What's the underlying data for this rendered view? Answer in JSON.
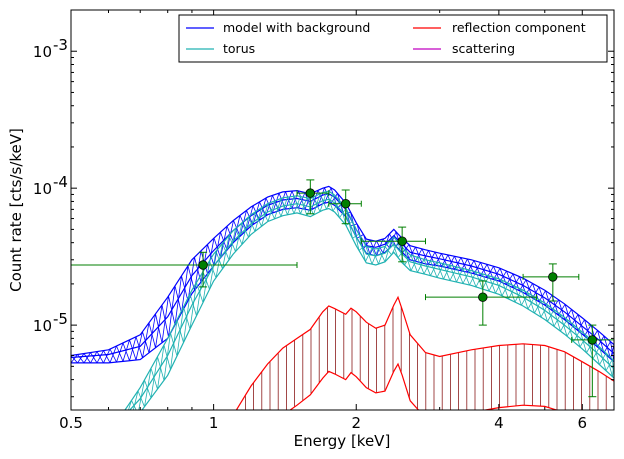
{
  "chart_data": {
    "type": "line",
    "xlabel": "Energy [keV]",
    "ylabel": "Count rate [cts/s/keV]",
    "xscale": "log",
    "yscale": "log",
    "xlim": [
      0.5,
      7.0
    ],
    "ylim": [
      2.4e-06,
      0.002
    ],
    "x_ticks": [
      {
        "value": 0.5,
        "label": "0.5"
      },
      {
        "value": 1,
        "label": "1"
      },
      {
        "value": 2,
        "label": "2"
      },
      {
        "value": 4,
        "label": "4"
      },
      {
        "value": 6,
        "label": "6"
      }
    ],
    "y_ticks": [
      {
        "value": 1e-05,
        "base": "10",
        "exp": "-5"
      },
      {
        "value": 0.0001,
        "base": "10",
        "exp": "-4"
      },
      {
        "value": 0.001,
        "base": "10",
        "exp": "-3"
      }
    ],
    "legend": {
      "placement": "top-right",
      "entries": [
        {
          "label": "model with background",
          "color": "#0000ff"
        },
        {
          "label": "reflection component",
          "color": "#ff0000"
        },
        {
          "label": "torus",
          "color": "#20b2b2"
        },
        {
          "label": "scattering",
          "color": "#c000c0"
        }
      ]
    },
    "series": [
      {
        "key": "model",
        "color": "#0000ff",
        "style": "band-hatched",
        "x": [
          0.5,
          0.6,
          0.7,
          0.8,
          0.9,
          1.0,
          1.1,
          1.2,
          1.3,
          1.4,
          1.5,
          1.6,
          1.7,
          1.75,
          1.8,
          1.9,
          2.0,
          2.1,
          2.2,
          2.3,
          2.4,
          2.5,
          2.6,
          2.8,
          3.0,
          3.5,
          4.0,
          4.5,
          5.0,
          5.5,
          6.0,
          6.5,
          7.0
        ],
        "mid": [
          5.8e-06,
          6.1e-06,
          7e-06,
          1.15e-05,
          2.3e-05,
          3.5e-05,
          4.9e-05,
          6.3e-05,
          7.5e-05,
          8.2e-05,
          8.4e-05,
          8e-05,
          8.9e-05,
          9.1e-05,
          8.6e-05,
          7e-05,
          5e-05,
          3.8e-05,
          3.7e-05,
          3.9e-05,
          4.5e-05,
          3.9e-05,
          3.4e-05,
          3.2e-05,
          3.05e-05,
          2.7e-05,
          2.35e-05,
          1.95e-05,
          1.58e-05,
          1.25e-05,
          9.8e-06,
          7.8e-06,
          6.2e-06
        ],
        "upper": [
          6e-06,
          6.6e-06,
          8.5e-06,
          1.6e-05,
          3e-05,
          4.3e-05,
          5.8e-05,
          7.3e-05,
          8.6e-05,
          9.4e-05,
          9.6e-05,
          9.1e-05,
          0.0001,
          0.000103,
          9.7e-05,
          7.8e-05,
          5.6e-05,
          4.25e-05,
          4.1e-05,
          4.3e-05,
          5e-05,
          4.3e-05,
          3.8e-05,
          3.55e-05,
          3.35e-05,
          3e-05,
          2.62e-05,
          2.2e-05,
          1.8e-05,
          1.43e-05,
          1.13e-05,
          9e-06,
          7.2e-06
        ],
        "lower": [
          5.3e-06,
          5.3e-06,
          5.6e-06,
          8e-06,
          1.7e-05,
          2.7e-05,
          4e-05,
          5.3e-05,
          6.4e-05,
          7e-05,
          7.2e-05,
          6.9e-05,
          7.7e-05,
          7.9e-05,
          7.5e-05,
          6.2e-05,
          4.4e-05,
          3.35e-05,
          3.2e-05,
          3.4e-05,
          3.9e-05,
          3.4e-05,
          3e-05,
          2.8e-05,
          2.7e-05,
          2.4e-05,
          2.1e-05,
          1.73e-05,
          1.4e-05,
          1.1e-05,
          8.6e-06,
          6.8e-06,
          5.4e-06
        ]
      },
      {
        "key": "torus",
        "color": "#20b2b2",
        "style": "band-hatched",
        "x": [
          0.65,
          0.7,
          0.8,
          0.9,
          1.0,
          1.1,
          1.2,
          1.3,
          1.4,
          1.5,
          1.6,
          1.7,
          1.75,
          1.8,
          1.9,
          2.0,
          2.1,
          2.2,
          2.3,
          2.4,
          2.5,
          2.6,
          2.8,
          3.0,
          3.5,
          4.0,
          4.5,
          5.0,
          5.5,
          6.0,
          6.5,
          7.0
        ],
        "mid": [
          2.2e-06,
          2.9e-06,
          6e-06,
          1.4e-05,
          2.7e-05,
          4.1e-05,
          5.5e-05,
          6.7e-05,
          7.4e-05,
          7.7e-05,
          7.3e-05,
          8.1e-05,
          8.3e-05,
          7.8e-05,
          6.3e-05,
          4.4e-05,
          3.3e-05,
          3.2e-05,
          3.35e-05,
          3.9e-05,
          3.3e-05,
          2.9e-05,
          2.7e-05,
          2.55e-05,
          2.25e-05,
          1.95e-05,
          1.6e-05,
          1.28e-05,
          1e-05,
          7.8e-06,
          6.1e-06,
          4.8e-06
        ],
        "upper": [
          2.4e-06,
          3.5e-06,
          8e-06,
          1.8e-05,
          3.3e-05,
          4.9e-05,
          6.4e-05,
          7.7e-05,
          8.5e-05,
          8.8e-05,
          8.4e-05,
          9.3e-05,
          9.5e-05,
          8.9e-05,
          7.2e-05,
          5e-05,
          3.75e-05,
          3.6e-05,
          3.75e-05,
          4.4e-05,
          3.7e-05,
          3.25e-05,
          3e-05,
          2.85e-05,
          2.5e-05,
          2.18e-05,
          1.8e-05,
          1.45e-05,
          1.14e-05,
          8.9e-06,
          7e-06,
          5.5e-06
        ],
        "lower": [
          2e-06,
          2.3e-06,
          4.3e-06,
          1e-05,
          2.1e-05,
          3.3e-05,
          4.6e-05,
          5.7e-05,
          6.3e-05,
          6.6e-05,
          6.2e-05,
          6.9e-05,
          7.1e-05,
          6.7e-05,
          5.4e-05,
          3.8e-05,
          2.85e-05,
          2.75e-05,
          2.9e-05,
          3.4e-05,
          2.85e-05,
          2.5e-05,
          2.35e-05,
          2.2e-05,
          1.95e-05,
          1.68e-05,
          1.38e-05,
          1.1e-05,
          8.6e-06,
          6.7e-06,
          5.2e-06,
          4.1e-06
        ]
      },
      {
        "key": "reflection",
        "color": "#ff0000",
        "style": "band-vertical",
        "x": [
          1.1,
          1.2,
          1.3,
          1.4,
          1.5,
          1.6,
          1.7,
          1.75,
          1.8,
          1.9,
          1.95,
          2.0,
          2.1,
          2.2,
          2.3,
          2.4,
          2.45,
          2.5,
          2.6,
          2.8,
          3.0,
          3.5,
          4.0,
          4.5,
          5.0,
          5.5,
          6.0,
          6.5,
          7.0
        ],
        "upper": [
          2.2e-06,
          3.6e-06,
          5.2e-06,
          6.8e-06,
          8e-06,
          9.3e-06,
          1.25e-05,
          1.38e-05,
          1.32e-05,
          1.2e-05,
          1.33e-05,
          1.25e-05,
          1.05e-05,
          9.5e-06,
          1e-05,
          1.4e-05,
          1.6e-05,
          1.3e-05,
          8.5e-06,
          6.3e-06,
          5.9e-06,
          6.6e-06,
          7.1e-06,
          7.3e-06,
          7.1e-06,
          6.4e-06,
          5.4e-06,
          4.6e-06,
          3.9e-06
        ],
        "lower": [
          null,
          null,
          null,
          2.2e-06,
          2.6e-06,
          3.1e-06,
          4.1e-06,
          4.6e-06,
          4.4e-06,
          4e-06,
          4.5e-06,
          4.2e-06,
          3.5e-06,
          3.2e-06,
          3.3e-06,
          4.6e-06,
          5.2e-06,
          4.3e-06,
          2.8e-06,
          2.1e-06,
          2e-06,
          2.3e-06,
          2.5e-06,
          2.6e-06,
          2.55e-06,
          2.3e-06,
          2e-06,
          null,
          null
        ]
      }
    ],
    "data_points": [
      {
        "x": 0.95,
        "y": 2.75e-05,
        "xerr": [
          0.5,
          1.5
        ],
        "yerr": [
          1.9e-05,
          3.4e-05
        ]
      },
      {
        "x": 1.6,
        "y": 9.2e-05,
        "xerr": [
          1.5,
          1.75
        ],
        "yerr": [
          6.5e-05,
          0.000115
        ]
      },
      {
        "x": 1.9,
        "y": 7.7e-05,
        "xerr": [
          1.75,
          2.05
        ],
        "yerr": [
          5.5e-05,
          9.7e-05
        ]
      },
      {
        "x": 2.5,
        "y": 4.1e-05,
        "xerr": [
          2.05,
          2.8
        ],
        "yerr": [
          2.9e-05,
          5.2e-05
        ]
      },
      {
        "x": 3.7,
        "y": 1.6e-05,
        "xerr": [
          2.8,
          4.8
        ],
        "yerr": [
          1e-05,
          2.1e-05
        ]
      },
      {
        "x": 5.2,
        "y": 2.25e-05,
        "xerr": [
          4.5,
          5.9
        ],
        "yerr": [
          1.5e-05,
          2.8e-05
        ]
      },
      {
        "x": 6.3,
        "y": 7.8e-06,
        "xerr": [
          5.7,
          7.0
        ],
        "yerr": [
          3e-06,
          1e-05
        ]
      }
    ],
    "data_color": "#007f00"
  }
}
